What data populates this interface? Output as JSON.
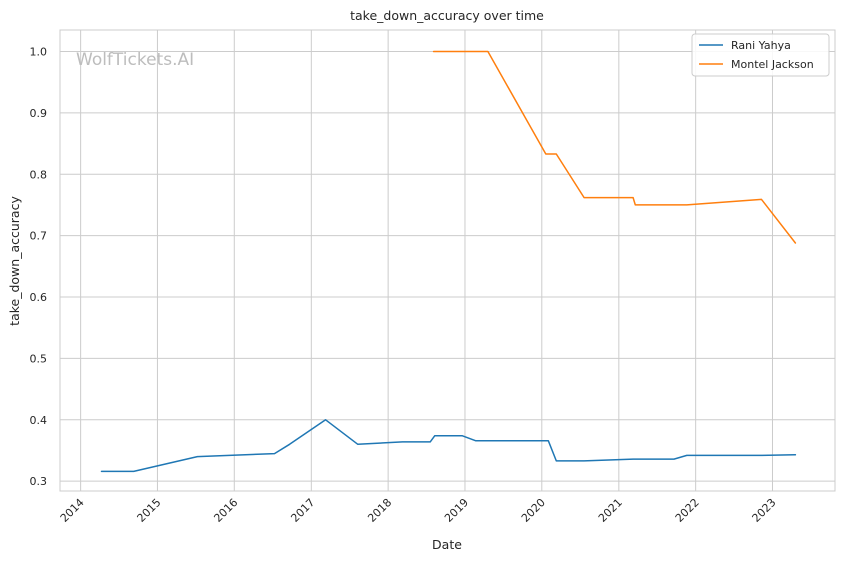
{
  "chart_data": {
    "type": "line",
    "title": "take_down_accuracy over time",
    "xlabel": "Date",
    "ylabel": "take_down_accuracy",
    "watermark": "WolfTickets.AI",
    "x_ticks": [
      "2014",
      "2015",
      "2016",
      "2017",
      "2018",
      "2019",
      "2020",
      "2021",
      "2022",
      "2023"
    ],
    "y_ticks": [
      "0.3",
      "0.4",
      "0.5",
      "0.6",
      "0.7",
      "0.8",
      "0.9",
      "1.0"
    ],
    "xlim": [
      "2013-09-25",
      "2023-10-25"
    ],
    "ylim": [
      0.284,
      1.035
    ],
    "grid": true,
    "legend_position": "top-right",
    "series": [
      {
        "name": "Rani Yahya",
        "color": "#1f77b4",
        "points": [
          [
            "2014-04-10",
            0.316
          ],
          [
            "2014-09-10",
            0.316
          ],
          [
            "2015-07-10",
            0.34
          ],
          [
            "2016-07-10",
            0.345
          ],
          [
            "2016-09-20",
            0.36
          ],
          [
            "2017-03-10",
            0.4
          ],
          [
            "2017-08-10",
            0.36
          ],
          [
            "2018-03-10",
            0.364
          ],
          [
            "2018-07-20",
            0.364
          ],
          [
            "2018-08-10",
            0.374
          ],
          [
            "2018-12-20",
            0.374
          ],
          [
            "2019-02-20",
            0.366
          ],
          [
            "2020-02-01",
            0.366
          ],
          [
            "2020-03-10",
            0.333
          ],
          [
            "2020-07-20",
            0.333
          ],
          [
            "2021-03-10",
            0.336
          ],
          [
            "2021-09-20",
            0.336
          ],
          [
            "2021-11-20",
            0.342
          ],
          [
            "2022-11-10",
            0.342
          ],
          [
            "2023-04-20",
            0.343
          ]
        ]
      },
      {
        "name": "Montel Jackson",
        "color": "#ff7f0e",
        "points": [
          [
            "2018-08-05",
            1.0
          ],
          [
            "2019-04-20",
            1.0
          ],
          [
            "2020-01-20",
            0.833
          ],
          [
            "2020-03-10",
            0.833
          ],
          [
            "2020-07-20",
            0.762
          ],
          [
            "2021-03-10",
            0.762
          ],
          [
            "2021-03-20",
            0.75
          ],
          [
            "2021-11-20",
            0.75
          ],
          [
            "2022-11-10",
            0.759
          ],
          [
            "2023-04-20",
            0.688
          ]
        ]
      }
    ]
  }
}
